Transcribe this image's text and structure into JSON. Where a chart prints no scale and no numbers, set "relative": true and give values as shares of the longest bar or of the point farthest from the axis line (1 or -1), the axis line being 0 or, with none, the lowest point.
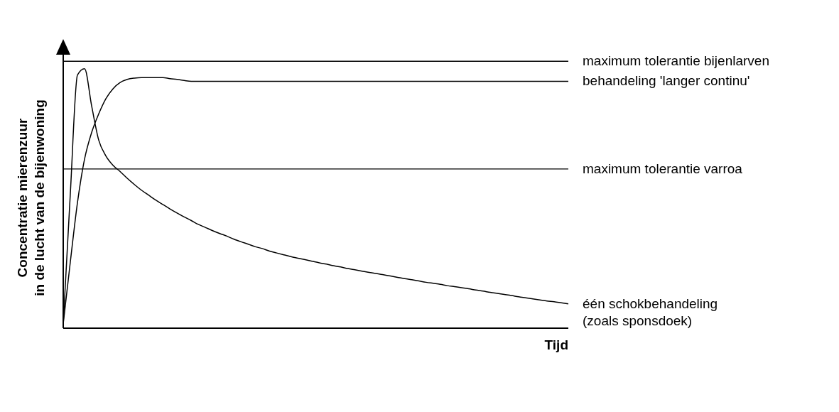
{
  "chart_data": {
    "type": "line",
    "relative": true,
    "ylabel": "Concentratie mierenzuur\nin de lucht van de bijenwoning",
    "xlabel": "Tijd",
    "marker": "none",
    "line_style": "solid",
    "categories": [
      null,
      null,
      null,
      null,
      null,
      null,
      null,
      null,
      null,
      null,
      null,
      null,
      null,
      null,
      null,
      null,
      null,
      null,
      null,
      null,
      null,
      null,
      null,
      null,
      null,
      null,
      null,
      null,
      null,
      null,
      null,
      null,
      null,
      null,
      null,
      null,
      null,
      null,
      null,
      null,
      null,
      null,
      null,
      null,
      null,
      null,
      null,
      null,
      null,
      null,
      null,
      null,
      null,
      null,
      null,
      null,
      null,
      null,
      null,
      null,
      null,
      null,
      null,
      null,
      null,
      null,
      null,
      null,
      null,
      null,
      null,
      null
    ],
    "series": [
      {
        "name": "behandeling 'langer continu'",
        "color": "#000000",
        "values": [
          0.017,
          0.256,
          0.484,
          0.652,
          0.755,
          0.827,
          0.885,
          0.923,
          0.947,
          0.959,
          0.964,
          0.966,
          0.966,
          0.966,
          0.966,
          0.962,
          0.959,
          0.955,
          0.952,
          0.952,
          0.952,
          0.952,
          0.952,
          0.952,
          0.952,
          0.952,
          0.952,
          0.952,
          0.952,
          0.952,
          0.952,
          0.952,
          0.952,
          0.952,
          0.952,
          0.952,
          0.952,
          0.952,
          0.952,
          0.952,
          0.952,
          0.952,
          0.952,
          0.952,
          0.952,
          0.952,
          0.952,
          0.952,
          0.952,
          0.952,
          0.952,
          0.952,
          0.952,
          0.952,
          0.952,
          0.952,
          0.952,
          0.952,
          0.952,
          0.952,
          0.952,
          0.952,
          0.952,
          0.952,
          0.952,
          0.952,
          0.952,
          0.952,
          0.952,
          0.952,
          0.952,
          0.952
        ]
      },
      {
        "name": "één schokbehandeling\n(zoals sponsdoek)",
        "color": "#000000",
        "values": [
          0.017,
          0.52,
          0.976,
          1,
          0.856,
          0.724,
          0.664,
          0.628,
          0.604,
          0.578,
          0.554,
          0.532,
          0.513,
          0.494,
          0.477,
          0.46,
          0.444,
          0.429,
          0.415,
          0.4,
          0.388,
          0.376,
          0.365,
          0.355,
          0.343,
          0.333,
          0.324,
          0.314,
          0.307,
          0.297,
          0.29,
          0.283,
          0.276,
          0.27,
          0.264,
          0.258,
          0.252,
          0.247,
          0.241,
          0.236,
          0.23,
          0.225,
          0.22,
          0.215,
          0.211,
          0.206,
          0.201,
          0.196,
          0.191,
          0.187,
          0.182,
          0.177,
          0.173,
          0.169,
          0.164,
          0.16,
          0.156,
          0.152,
          0.147,
          0.143,
          0.138,
          0.134,
          0.13,
          0.126,
          0.121,
          0.117,
          0.113,
          0.109,
          0.105,
          0.102,
          0.098,
          0.094
        ]
      }
    ],
    "ref_lines": [
      {
        "axis": "y",
        "value": 1.029,
        "label": "maximum tolerantie bijenlarven",
        "color": "#000000"
      },
      {
        "axis": "y",
        "value": 0.614,
        "label": "maximum tolerantie varroa",
        "color": "#000000"
      }
    ]
  }
}
